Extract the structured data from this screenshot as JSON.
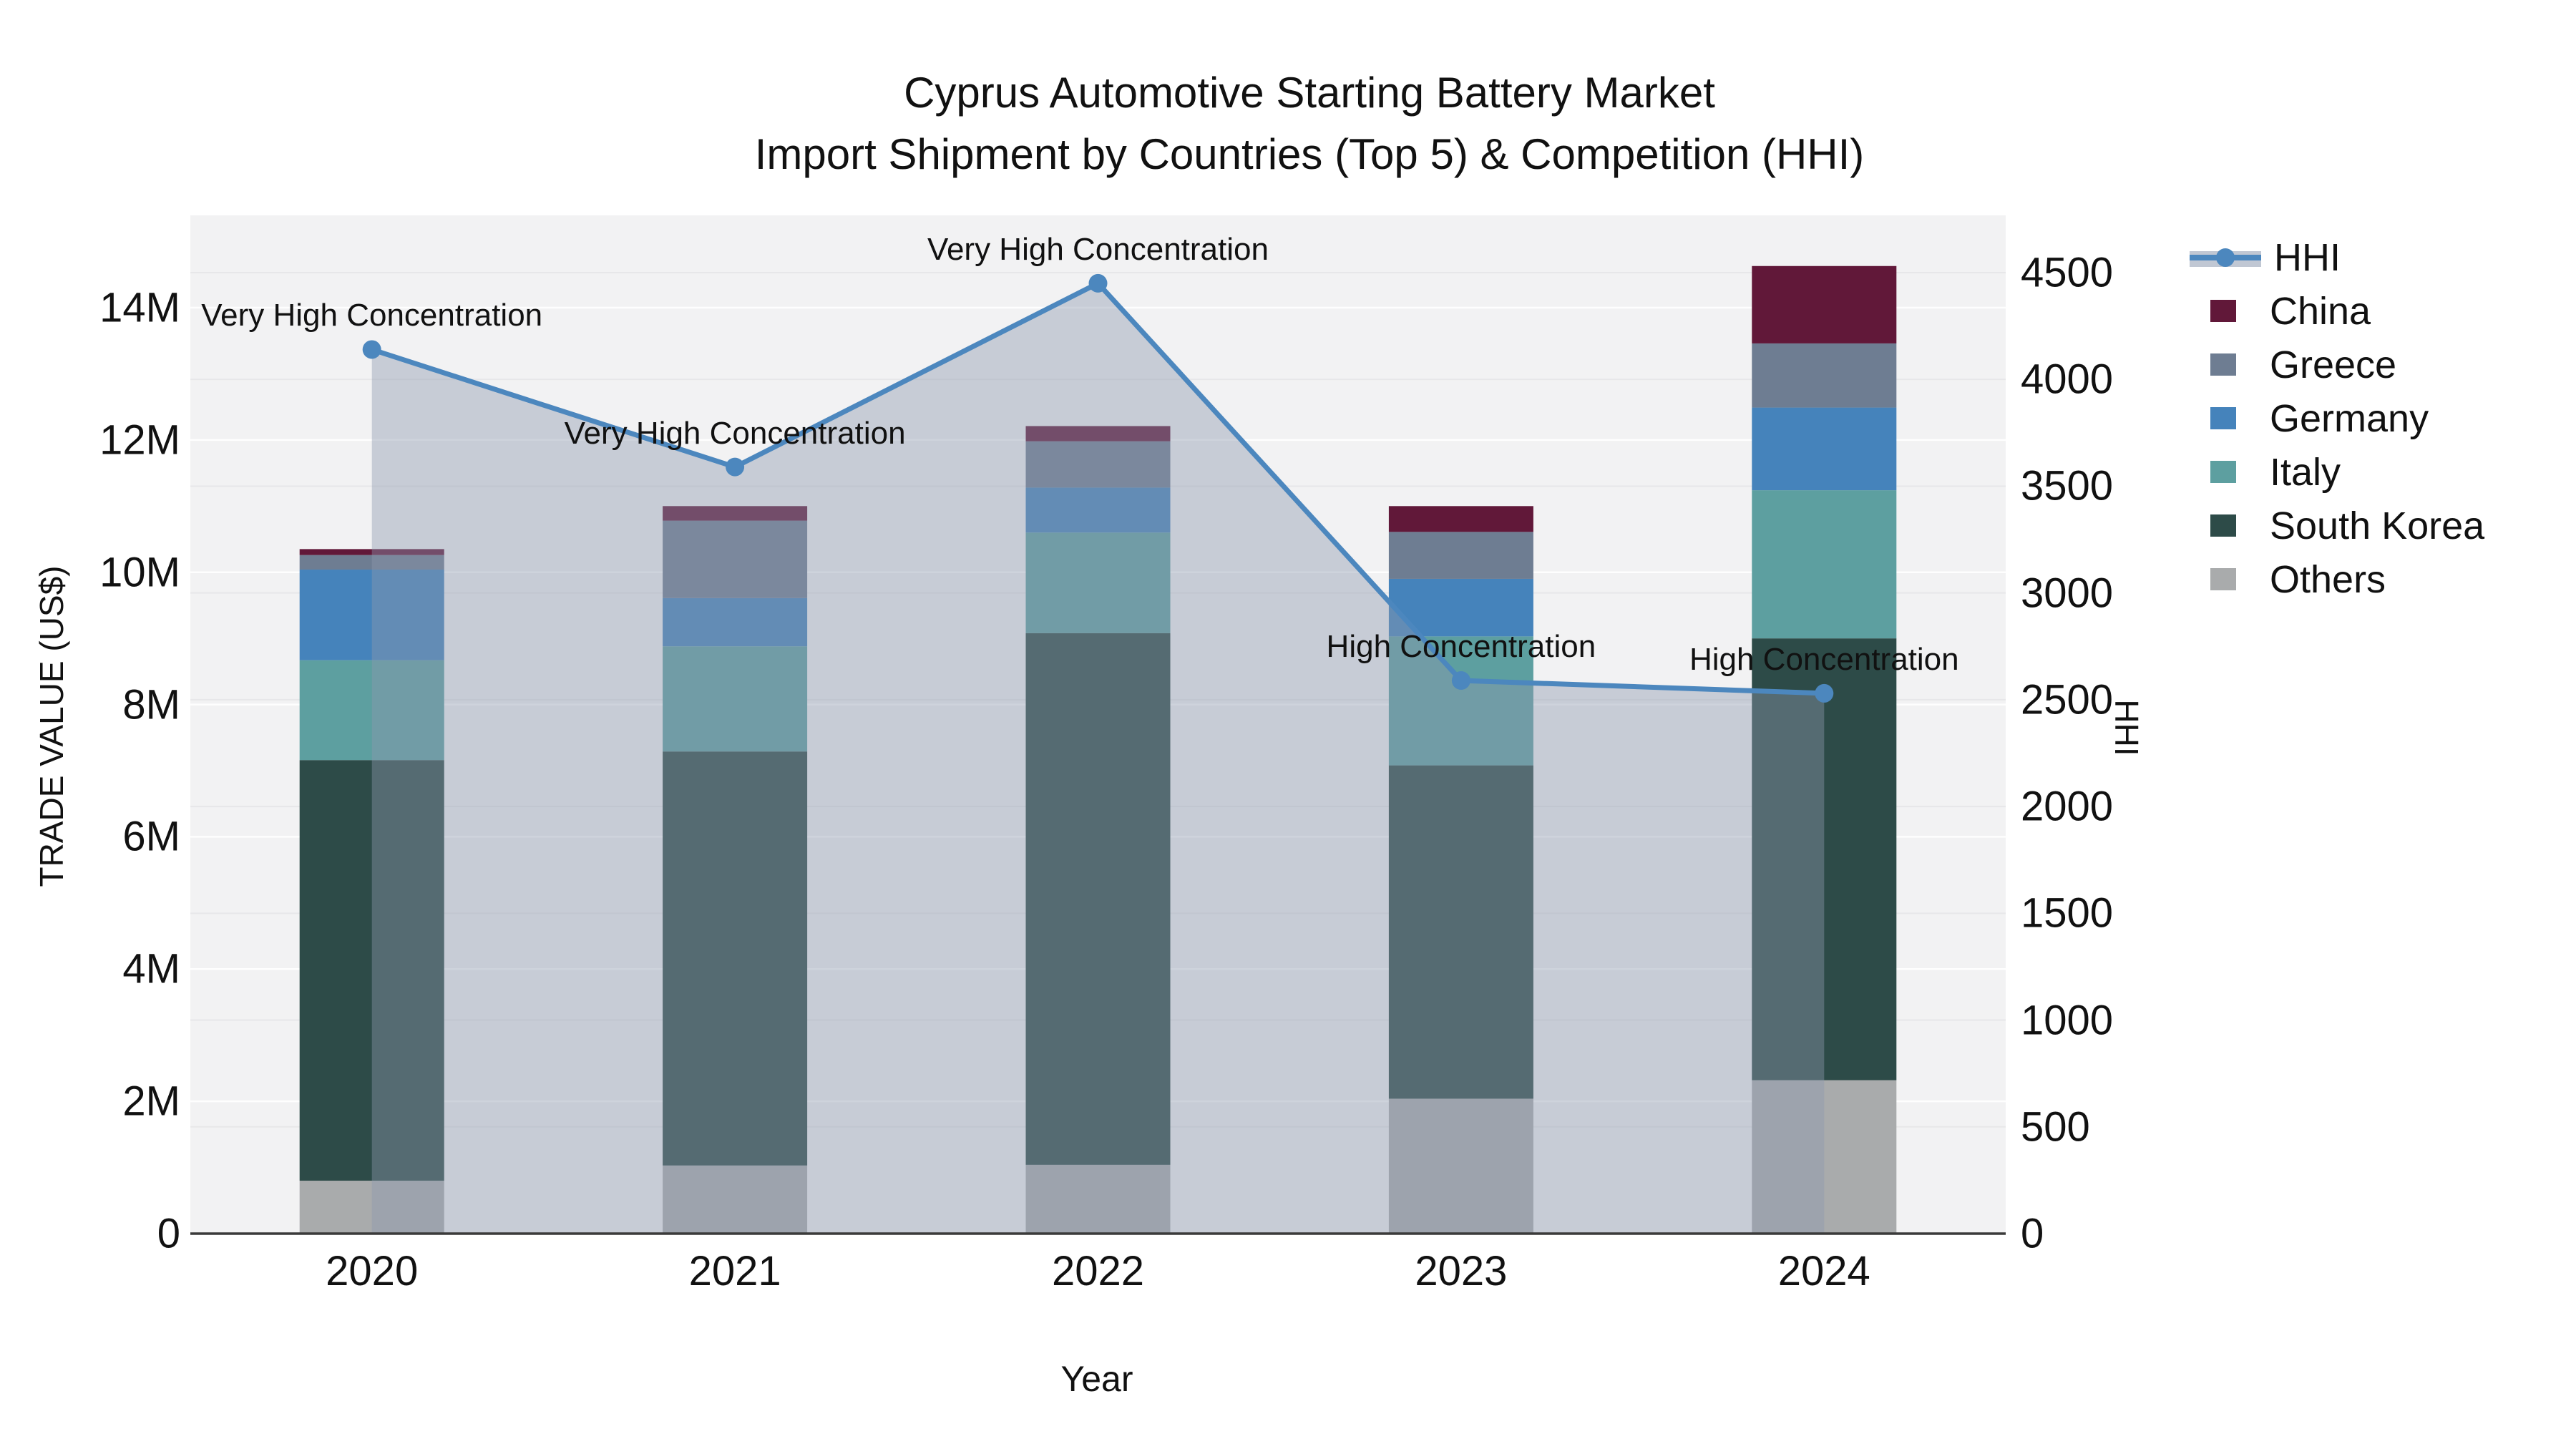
{
  "title": {
    "line1": "Cyprus Automotive Starting Battery Market",
    "line2": "Import Shipment by Countries (Top 5) & Competition (HHI)"
  },
  "axes": {
    "x": {
      "label": "Year"
    },
    "y_left": {
      "label": "TRADE VALUE (US$)",
      "tick_labels": [
        "0",
        "2M",
        "4M",
        "6M",
        "8M",
        "10M",
        "12M",
        "14M"
      ],
      "tick_values": [
        0,
        2000000,
        4000000,
        6000000,
        8000000,
        10000000,
        12000000,
        14000000
      ]
    },
    "y_right": {
      "label": "HHI",
      "tick_labels": [
        "0",
        "500",
        "1000",
        "1500",
        "2000",
        "2500",
        "3000",
        "3500",
        "4000",
        "4500"
      ],
      "tick_values": [
        0,
        500,
        1000,
        1500,
        2000,
        2500,
        3000,
        3500,
        4000,
        4500
      ]
    }
  },
  "legend": {
    "items": [
      {
        "label": "HHI",
        "type": "line",
        "color_key": "hhi_line"
      },
      {
        "label": "China",
        "type": "square",
        "color_key": "china"
      },
      {
        "label": "Greece",
        "type": "square",
        "color_key": "greece"
      },
      {
        "label": "Germany",
        "type": "square",
        "color_key": "germany"
      },
      {
        "label": "Italy",
        "type": "square",
        "color_key": "italy"
      },
      {
        "label": "South Korea",
        "type": "square",
        "color_key": "south_korea"
      },
      {
        "label": "Others",
        "type": "square",
        "color_key": "others"
      }
    ]
  },
  "chart_data": {
    "type": "combo",
    "subtypes": [
      "stacked-bar",
      "line-area"
    ],
    "categories": [
      "2020",
      "2021",
      "2022",
      "2023",
      "2024"
    ],
    "bar_value_unit": "US$ trade value",
    "stack_order_bottom_to_top": [
      "Others",
      "South Korea",
      "Italy",
      "Germany",
      "Greece",
      "China"
    ],
    "series": [
      {
        "name": "Others",
        "type": "bar",
        "axis": "left",
        "values": [
          800000,
          1030000,
          1040000,
          2040000,
          2320000
        ]
      },
      {
        "name": "South Korea",
        "type": "bar",
        "axis": "left",
        "values": [
          6360000,
          6260000,
          8040000,
          5040000,
          6680000
        ]
      },
      {
        "name": "Italy",
        "type": "bar",
        "axis": "left",
        "values": [
          1510000,
          1590000,
          1520000,
          1950000,
          2240000
        ]
      },
      {
        "name": "Germany",
        "type": "bar",
        "axis": "left",
        "values": [
          1370000,
          730000,
          680000,
          870000,
          1250000
        ]
      },
      {
        "name": "Greece",
        "type": "bar",
        "axis": "left",
        "values": [
          220000,
          1170000,
          700000,
          710000,
          970000
        ]
      },
      {
        "name": "China",
        "type": "bar",
        "axis": "left",
        "values": [
          90000,
          220000,
          230000,
          390000,
          1170000
        ]
      },
      {
        "name": "HHI",
        "type": "line",
        "axis": "right",
        "area_fill": true,
        "values": [
          4140,
          3590,
          4450,
          2590,
          2530
        ]
      }
    ],
    "bar_totals": [
      10350000,
      11000000,
      12210000,
      11000000,
      14630000
    ],
    "ylim_left": [
      0,
      14000000
    ],
    "ylim_right": [
      0,
      4500
    ],
    "grid": true,
    "legend_position": "right",
    "annotations": [
      {
        "text": "Very High Concentration",
        "category": "2020"
      },
      {
        "text": "Very High Concentration",
        "category": "2021"
      },
      {
        "text": "Very High Concentration",
        "category": "2022"
      },
      {
        "text": "High Concentration",
        "category": "2023"
      },
      {
        "text": "High Concentration",
        "category": "2024"
      }
    ]
  },
  "colors": {
    "china": "#611839",
    "greece": "#6e7d92",
    "germany": "#4583bb",
    "italy": "#5d9fa0",
    "south_korea": "#2d4b48",
    "others": "#a9abac",
    "hhi_line": "#4c87be",
    "hhi_area": "rgba(140,153,175,0.42)",
    "plot_bg": "#f2f2f3",
    "grid_left": "rgba(255,255,255,0.92)",
    "grid_right": "#e7e7e9",
    "axis_line": "#3a3a3a",
    "text": "#111111"
  }
}
